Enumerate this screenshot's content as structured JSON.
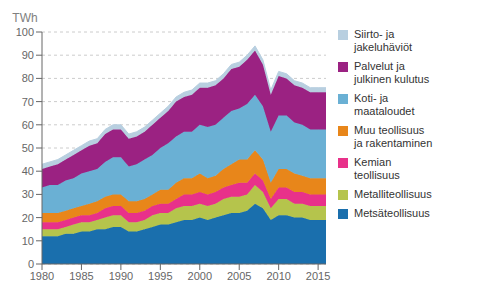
{
  "chart_data": {
    "type": "area",
    "stacked": true,
    "ylabel": "TWh",
    "grid": true,
    "legend": "right",
    "x": [
      1980,
      1981,
      1982,
      1983,
      1984,
      1985,
      1986,
      1987,
      1988,
      1989,
      1990,
      1991,
      1992,
      1993,
      1994,
      1995,
      1996,
      1997,
      1998,
      1999,
      2000,
      2001,
      2002,
      2003,
      2004,
      2005,
      2006,
      2007,
      2008,
      2009,
      2010,
      2011,
      2012,
      2013,
      2014,
      2015,
      2016
    ],
    "xlim": [
      1980,
      2016
    ],
    "xticks": [
      1980,
      1985,
      1990,
      1995,
      2000,
      2005,
      2010,
      2015
    ],
    "ylim": [
      0,
      100
    ],
    "yticks": [
      0,
      10,
      20,
      30,
      40,
      50,
      60,
      70,
      80,
      90,
      100
    ],
    "series": [
      {
        "name": "Siirto- ja\njakeluhäviöt",
        "color": "#b8cfe0",
        "values": [
          2,
          2,
          2,
          2,
          2,
          2,
          2,
          2,
          2,
          2,
          2,
          2,
          2,
          2,
          2,
          2,
          2,
          2,
          2,
          2,
          2,
          2,
          2,
          2,
          2,
          2,
          2,
          2,
          2,
          2,
          2,
          2,
          2,
          2,
          2,
          2,
          2
        ]
      },
      {
        "name": "Palvelut ja\njulkinen kulutus",
        "color": "#9b2282",
        "values": [
          8,
          8,
          9,
          9,
          10,
          10,
          11,
          11,
          12,
          12,
          12,
          12,
          12,
          12,
          13,
          13,
          14,
          15,
          15,
          16,
          16,
          17,
          17,
          17,
          18,
          18,
          19,
          19,
          18,
          16,
          17,
          16,
          16,
          16,
          16,
          16,
          16
        ]
      },
      {
        "name": "Koti- ja\nmaataloudet",
        "color": "#6ab0d4",
        "values": [
          11,
          12,
          12,
          13,
          13,
          14,
          14,
          14,
          15,
          16,
          16,
          15,
          16,
          17,
          17,
          18,
          20,
          20,
          20,
          20,
          21,
          22,
          22,
          22,
          23,
          22,
          24,
          24,
          23,
          22,
          23,
          23,
          22,
          22,
          21,
          21,
          21
        ]
      },
      {
        "name": "Muu teollisuus\nja rakentaminen",
        "color": "#e8861a",
        "values": [
          4,
          4,
          4,
          4,
          4,
          4,
          5,
          5,
          5,
          5,
          5,
          5,
          5,
          5,
          5,
          6,
          6,
          7,
          7,
          7,
          8,
          7,
          7,
          8,
          9,
          10,
          10,
          10,
          9,
          7,
          8,
          8,
          8,
          7,
          7,
          7,
          7
        ]
      },
      {
        "name": "Kemian\nteollisuus",
        "color": "#e8318a",
        "values": [
          3,
          3,
          3,
          3,
          3,
          3,
          3,
          3,
          4,
          4,
          4,
          4,
          4,
          4,
          4,
          4,
          4,
          4,
          5,
          5,
          5,
          5,
          5,
          5,
          5,
          6,
          5,
          5,
          5,
          4,
          5,
          5,
          5,
          5,
          5,
          5,
          5
        ]
      },
      {
        "name": "Metalliteollisuus",
        "color": "#b5c44c",
        "values": [
          3,
          3,
          3,
          3,
          4,
          4,
          4,
          4,
          5,
          5,
          5,
          4,
          4,
          4,
          5,
          5,
          5,
          6,
          6,
          6,
          6,
          6,
          6,
          7,
          7,
          7,
          7,
          8,
          7,
          5,
          7,
          7,
          6,
          6,
          6,
          6,
          6
        ]
      },
      {
        "name": "Metsäteollisuus",
        "color": "#1a6fad",
        "values": [
          12,
          12,
          12,
          13,
          13,
          14,
          14,
          15,
          15,
          16,
          16,
          14,
          14,
          15,
          16,
          17,
          17,
          18,
          19,
          19,
          20,
          19,
          20,
          21,
          22,
          22,
          23,
          26,
          24,
          19,
          21,
          21,
          20,
          20,
          19,
          19,
          19
        ]
      }
    ]
  }
}
